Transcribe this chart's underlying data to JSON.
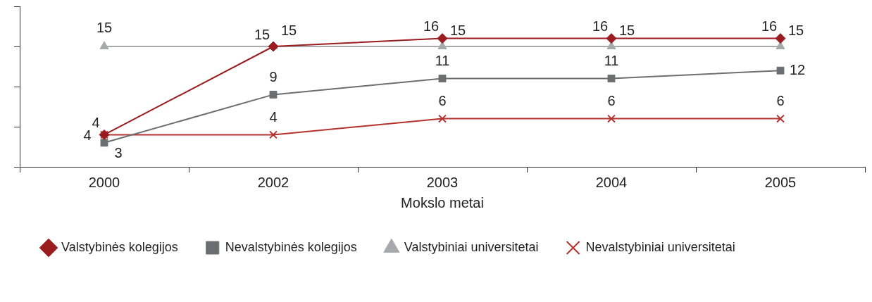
{
  "chart_data": {
    "type": "line",
    "xlabel": "Mokslo metai",
    "categories": [
      "2000",
      "2002",
      "2003",
      "2004",
      "2005"
    ],
    "series": [
      {
        "name": "Valstybinės kolegijos",
        "color": "#9b1c1f",
        "marker": "diamond",
        "values": [
          4,
          15,
          16,
          16,
          16
        ]
      },
      {
        "name": "Nevalstybinės kolegijos",
        "color": "#6d6e71",
        "marker": "square",
        "values": [
          3,
          9,
          11,
          11,
          12
        ]
      },
      {
        "name": "Valstybiniai universitetai",
        "color": "#a7a9ac",
        "marker": "triangle",
        "values": [
          15,
          15,
          15,
          15,
          15
        ]
      },
      {
        "name": "Nevalstybiniai universitetai",
        "color": "#b5312c",
        "marker": "cross",
        "values": [
          4,
          4,
          6,
          6,
          6
        ]
      }
    ],
    "ylim": [
      0,
      20
    ],
    "yticks": [
      {
        "value": 0,
        "label": null
      },
      {
        "value": 5,
        "label": null
      },
      {
        "value": 10,
        "label": null
      },
      {
        "value": 15,
        "label": null
      },
      {
        "value": 20,
        "label": null
      }
    ],
    "tick_labels": "x",
    "grid": false,
    "legend": "bottom",
    "line_style": "solid",
    "data_labels": true
  }
}
